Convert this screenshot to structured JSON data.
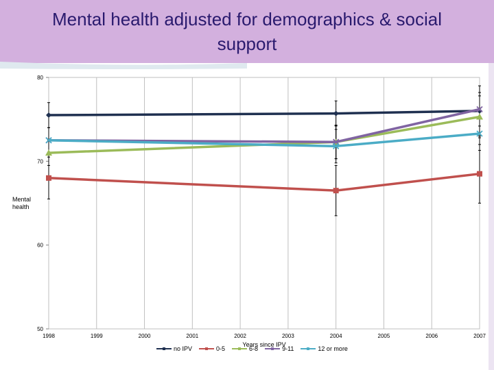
{
  "title": "Mental health adjusted for demographics & social support",
  "chart_data": {
    "type": "line",
    "title": "Mental health adjusted for demographics & social support",
    "xlabel": "Years since IPV",
    "ylabel": "Mental health",
    "xlim": [
      1998,
      2007
    ],
    "ylim": [
      50,
      80
    ],
    "x_ticks": [
      "1998",
      "1999",
      "2000",
      "2001",
      "2002",
      "2003",
      "2004",
      "2005",
      "2006",
      "2007"
    ],
    "y_ticks": [
      "50",
      "60",
      "70",
      "80"
    ],
    "grid": "vertical",
    "legend_position": "bottom",
    "series": [
      {
        "name": "no IPV",
        "color": "#1f3050",
        "marker": "diamond",
        "x": [
          1998,
          2004,
          2007
        ],
        "y": [
          75.5,
          75.7,
          76.0
        ],
        "err": [
          1.5,
          1.5,
          3.0
        ]
      },
      {
        "name": "0-5",
        "color": "#c0504d",
        "marker": "square",
        "x": [
          1998,
          2004,
          2007
        ],
        "y": [
          68.0,
          66.5,
          68.5
        ],
        "err": [
          2.5,
          3.0,
          3.5
        ]
      },
      {
        "name": "6-8",
        "color": "#9bbb59",
        "marker": "triangle",
        "x": [
          1998,
          2004,
          2007
        ],
        "y": [
          71.0,
          72.3,
          75.3
        ],
        "err": [
          1.5,
          2.0,
          2.5
        ]
      },
      {
        "name": "9-11",
        "color": "#8064a2",
        "marker": "x",
        "x": [
          1998,
          2004,
          2007
        ],
        "y": [
          72.5,
          72.3,
          76.2
        ],
        "err": [
          1.5,
          2.0,
          2.0
        ]
      },
      {
        "name": "12 or more",
        "color": "#4bacc6",
        "marker": "x",
        "x": [
          1998,
          2004,
          2007
        ],
        "y": [
          72.5,
          71.8,
          73.3
        ],
        "err": [
          1.5,
          2.0,
          2.0
        ]
      }
    ]
  }
}
